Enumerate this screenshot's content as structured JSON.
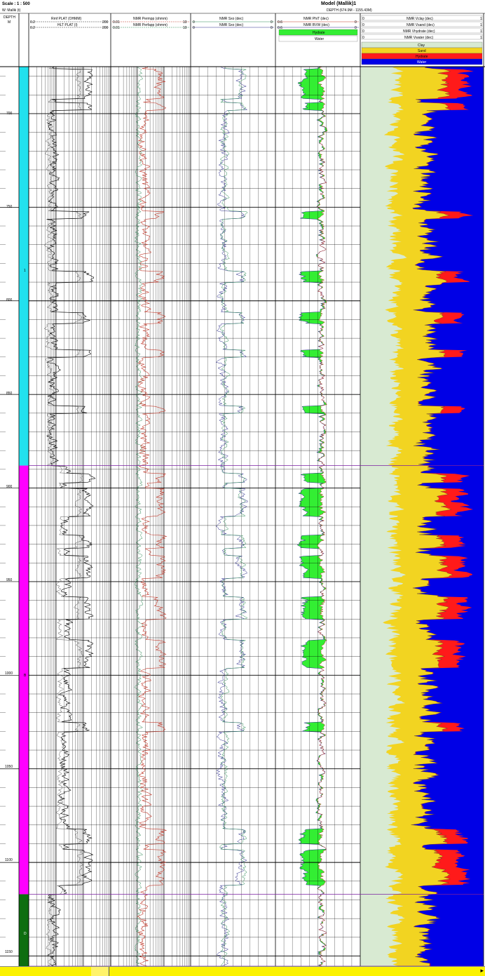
{
  "header": {
    "scale": "Scale : 1 : 500",
    "well_sub": "W: Mallik (t)",
    "title": "Model (Mallik)1",
    "depth_range": "DEPTH (674.9M - 1155.43M)",
    "depth_col": {
      "label": "DEPTH",
      "unit": "M"
    }
  },
  "tracks": {
    "resistivity": {
      "curves": [
        {
          "name": "Rmf PLAT (OHMM)",
          "min": "0.2",
          "max": "200",
          "color": "#000000"
        },
        {
          "name": "HLT PLAT (I)",
          "min": "0.2",
          "max": "200",
          "color": "#000000"
        }
      ]
    },
    "nmr_perm": {
      "curves": [
        {
          "name": "NMR Permpp (ohmm)",
          "min": "0.01",
          "max": "10",
          "color": "#c0392b"
        },
        {
          "name": "NMR Perfapp (ohmm)",
          "min": "0.01",
          "max": "10",
          "color": "#2e8b57"
        }
      ]
    },
    "saturation": {
      "curves": [
        {
          "name": "NMR Sxo (dec)",
          "min": "0",
          "max": "0",
          "color": "#2e8b57"
        },
        {
          "name": "NMR Sxo (dec)",
          "min": "0",
          "max": "0",
          "color": "#2a2a8a"
        }
      ]
    },
    "porosity": {
      "curves": [
        {
          "name": "NMR PhiT (dec)",
          "min": "0.6",
          "max": "0",
          "color": "#c0392b"
        },
        {
          "name": "NMR BVW (dec)",
          "min": "0.6",
          "max": "0",
          "color": "#2a2a8a"
        }
      ],
      "legend": [
        {
          "label": "Hydrate",
          "color": "#33ee33"
        },
        {
          "label": "Water",
          "color": "#ffffff"
        }
      ]
    },
    "volumes": {
      "curves": [
        {
          "name": "NMR Vclay (dec)",
          "min": "0",
          "max": "1"
        },
        {
          "name": "NMR Vsand (dec)",
          "min": "0",
          "max": "1"
        },
        {
          "name": "NMR Vhydrate (dec)",
          "min": "0",
          "max": "1"
        },
        {
          "name": "NMR Vwater (dec)",
          "min": "0",
          "max": "1"
        }
      ],
      "legend": [
        {
          "label": "Clay",
          "color": "#d8ead2"
        },
        {
          "label": "Sand",
          "color": "#f2d421"
        },
        {
          "label": "Hydrate",
          "color": "#ff1a1a"
        },
        {
          "label": "Water",
          "color": "#0000e6"
        }
      ]
    }
  },
  "zones": [
    {
      "label": "1",
      "color": "#22e1ee",
      "top": 674.9,
      "base": 888
    },
    {
      "label": "B",
      "color": "#ff00ff",
      "top": 888,
      "base": 1117
    },
    {
      "label": "D",
      "color": "#0e6e10",
      "top": 1117,
      "base": 1155.43
    }
  ],
  "depth_ticks": [
    "700",
    "750",
    "800",
    "850",
    "900",
    "950",
    "1000",
    "1050",
    "1100",
    "1150"
  ],
  "depth_values": [
    700,
    750,
    800,
    850,
    900,
    950,
    1000,
    1050,
    1100,
    1150
  ],
  "depth_range": [
    674.9,
    1155.43
  ],
  "hydrate_intervals": [
    [
      676,
      692
    ],
    [
      694,
      698
    ],
    [
      752,
      756
    ],
    [
      784,
      790
    ],
    [
      806,
      812
    ],
    [
      826,
      830
    ],
    [
      856,
      860
    ],
    [
      892,
      897
    ],
    [
      900,
      915
    ],
    [
      925,
      932
    ],
    [
      936,
      948
    ],
    [
      958,
      970
    ],
    [
      981,
      996
    ],
    [
      1025,
      1030
    ],
    [
      1082,
      1090
    ],
    [
      1093,
      1112
    ]
  ],
  "status_bar": {
    "color": "#fbf200"
  }
}
